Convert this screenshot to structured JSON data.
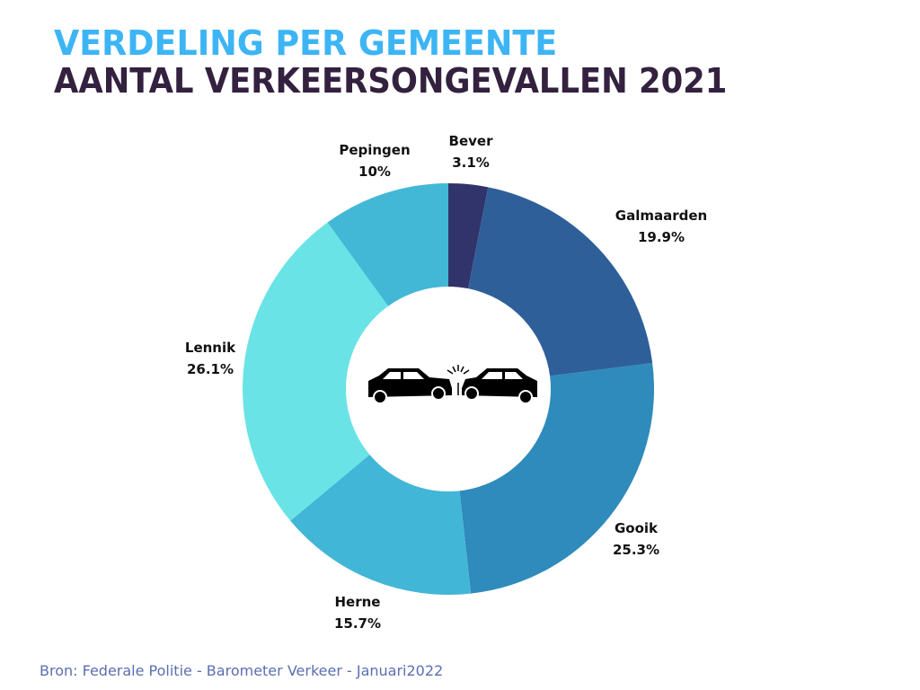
{
  "header": {
    "title": "VERDELING PER GEMEENTE",
    "subtitle": "AANTAL VERKEERSONGEVALLEN 2021"
  },
  "footer": {
    "source": "Bron: Federale Politie - Barometer Verkeer - Januari2022"
  },
  "center_icon": "car-crash-icon",
  "chart_data": {
    "type": "pie",
    "variant": "donut",
    "title": "VERDELING PER GEMEENTE — AANTAL VERKEERSONGEVALLEN 2021",
    "start": "top",
    "direction": "clockwise",
    "categories": [
      "Bever",
      "Galmaarden",
      "Gooik",
      "Herne",
      "Lennik",
      "Pepingen"
    ],
    "values": [
      3.1,
      19.9,
      25.3,
      15.7,
      26.1,
      10
    ],
    "value_labels": [
      "3.1%",
      "19.9%",
      "25.3%",
      "15.7%",
      "26.1%",
      "10%"
    ],
    "colors": [
      "#31336b",
      "#2f5f99",
      "#2e8bbb",
      "#42b6d6",
      "#6ae3e6",
      "#43b8d6"
    ],
    "unit": "%",
    "legend": "none (labels outside slices)"
  }
}
